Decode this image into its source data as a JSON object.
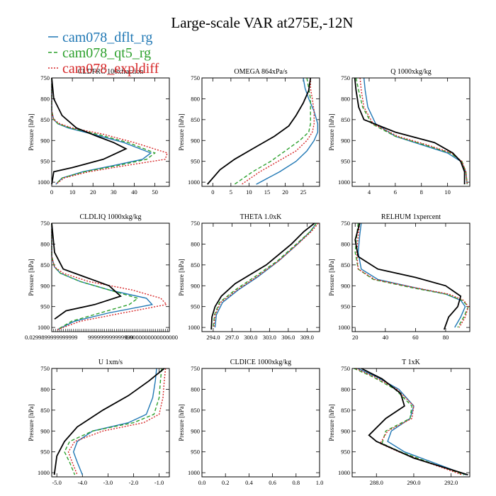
{
  "title": "Large-scale VAR at275E,-12N",
  "colors": {
    "dflt": "#1f77b4",
    "qt5": "#2ca02c",
    "expl": "#d62728",
    "obs": "#000000"
  },
  "legend": [
    {
      "name": "cam078_dflt_rg",
      "color": "#1f77b4",
      "dash": ""
    },
    {
      "name": "cam078_qt5_rg",
      "color": "#2ca02c",
      "dash": "5,3"
    },
    {
      "name": "cam078_expldiff",
      "color": "#d62728",
      "dash": "2,2"
    }
  ],
  "ylabel": "Pressure [hPa]",
  "chart_data": [
    {
      "type": "line",
      "title": "CLDFRC 100xfraction",
      "xlim": [
        0,
        57
      ],
      "ylim": [
        1010,
        750
      ],
      "xticks": [
        0,
        10,
        20,
        30,
        40,
        50
      ],
      "xticklabels": [
        "0",
        "10",
        "20",
        "30",
        "40",
        "50"
      ],
      "yticks": [
        750,
        800,
        850,
        900,
        950,
        1000
      ],
      "series": [
        {
          "key": "dflt",
          "x": [
            0,
            0,
            0,
            0,
            1,
            3,
            8,
            20,
            35,
            48,
            44,
            30,
            15,
            5,
            2
          ],
          "y": [
            750,
            780,
            800,
            830,
            850,
            860,
            870,
            885,
            905,
            930,
            945,
            960,
            975,
            990,
            1005
          ]
        },
        {
          "key": "qt5",
          "x": [
            0,
            0,
            0,
            0,
            1,
            3,
            9,
            22,
            37,
            50,
            46,
            32,
            16,
            5,
            2
          ],
          "y": [
            750,
            780,
            800,
            830,
            850,
            860,
            870,
            885,
            905,
            930,
            945,
            960,
            975,
            990,
            1005
          ]
        },
        {
          "key": "expl",
          "x": [
            0,
            0,
            0,
            0,
            1,
            4,
            10,
            25,
            40,
            56,
            55,
            36,
            18,
            6,
            2
          ],
          "y": [
            750,
            780,
            800,
            830,
            850,
            860,
            870,
            885,
            905,
            930,
            945,
            960,
            975,
            990,
            1005
          ]
        },
        {
          "key": "obs",
          "x": [
            0,
            1,
            5,
            12,
            22,
            30,
            36,
            25,
            10,
            1,
            0
          ],
          "y": [
            750,
            800,
            840,
            870,
            890,
            905,
            920,
            945,
            965,
            975,
            1005
          ]
        }
      ]
    },
    {
      "type": "line",
      "title": "OMEGA 864xPa/s",
      "xlim": [
        -3,
        29.5
      ],
      "ylim": [
        1010,
        750
      ],
      "xticks": [
        0,
        5,
        10,
        15,
        20,
        25
      ],
      "xticklabels": [
        "0",
        "5",
        "10",
        "15",
        "20",
        "25"
      ],
      "yticks": [
        750,
        800,
        850,
        900,
        950,
        1000
      ],
      "series": [
        {
          "key": "dflt",
          "x": [
            25,
            25.5,
            26.5,
            28,
            29,
            29,
            28,
            26,
            23,
            18.5,
            12
          ],
          "y": [
            750,
            775,
            800,
            830,
            860,
            880,
            900,
            925,
            950,
            975,
            1005
          ]
        },
        {
          "key": "qt5",
          "x": [
            26,
            26.5,
            27,
            27,
            27,
            26.5,
            24,
            20,
            16,
            11,
            6
          ],
          "y": [
            750,
            775,
            800,
            830,
            860,
            880,
            900,
            925,
            950,
            975,
            1005
          ]
        },
        {
          "key": "expl",
          "x": [
            27,
            27,
            27.5,
            28,
            28,
            27.5,
            26,
            23,
            18,
            13,
            8
          ],
          "y": [
            750,
            775,
            800,
            830,
            860,
            880,
            900,
            925,
            950,
            975,
            1005
          ]
        },
        {
          "key": "obs",
          "x": [
            27,
            26.5,
            25,
            23,
            21,
            17,
            11,
            6,
            2,
            -1.5
          ],
          "y": [
            750,
            780,
            810,
            840,
            865,
            890,
            920,
            945,
            970,
            1005
          ]
        }
      ]
    },
    {
      "type": "line",
      "title": "Q 1000xkg/kg",
      "xlim": [
        2.7,
        11.7
      ],
      "ylim": [
        1010,
        750
      ],
      "xticks": [
        4,
        6,
        8,
        10
      ],
      "xticklabels": [
        "4",
        "6",
        "8",
        "10"
      ],
      "yticks": [
        750,
        800,
        850,
        900,
        950,
        1000
      ],
      "series": [
        {
          "key": "dflt",
          "x": [
            3.6,
            3.7,
            3.9,
            4.5,
            6.0,
            8.0,
            10.0,
            11.0,
            11.4,
            11.5
          ],
          "y": [
            750,
            780,
            820,
            860,
            890,
            910,
            930,
            950,
            975,
            1005
          ]
        },
        {
          "key": "qt5",
          "x": [
            3.0,
            3.2,
            3.5,
            4.2,
            6.0,
            8.2,
            10.2,
            11.1,
            11.4,
            11.5
          ],
          "y": [
            750,
            780,
            820,
            860,
            890,
            910,
            930,
            950,
            975,
            1005
          ]
        },
        {
          "key": "expl",
          "x": [
            3.3,
            3.4,
            3.6,
            4.3,
            6.2,
            8.4,
            10.3,
            11.1,
            11.4,
            11.5
          ],
          "y": [
            750,
            780,
            820,
            860,
            890,
            910,
            930,
            950,
            975,
            1005
          ]
        },
        {
          "key": "obs",
          "x": [
            2.9,
            3.0,
            3.2,
            3.6,
            6.0,
            9.0,
            10.4,
            11.0,
            11.3,
            11.3
          ],
          "y": [
            750,
            780,
            820,
            850,
            880,
            905,
            930,
            950,
            975,
            1005
          ]
        }
      ]
    },
    {
      "type": "line",
      "title": "CLDLIQ 1000xkg/kg",
      "xlim": [
        0,
        0.041
      ],
      "ylim": [
        1010,
        750
      ],
      "xticklabels": [
        "0.0299899999999999",
        "999999999999999",
        "0.0000000000000000"
      ],
      "yticks": [
        750,
        800,
        850,
        900,
        950,
        1000
      ],
      "series": [
        {
          "key": "dflt",
          "x": [
            0,
            0,
            0,
            0.001,
            0.003,
            0.01,
            0.02,
            0.033,
            0.035,
            0.02,
            0.008,
            0.002
          ],
          "y": [
            750,
            800,
            830,
            855,
            870,
            890,
            910,
            930,
            945,
            965,
            985,
            1005
          ]
        },
        {
          "key": "qt5",
          "x": [
            0,
            0,
            0,
            0.001,
            0.003,
            0.01,
            0.02,
            0.03,
            0.027,
            0.017,
            0.007,
            0.002
          ],
          "y": [
            750,
            800,
            830,
            855,
            870,
            890,
            910,
            930,
            945,
            965,
            985,
            1005
          ]
        },
        {
          "key": "expl",
          "x": [
            0,
            0,
            0,
            0.001,
            0.004,
            0.013,
            0.028,
            0.038,
            0.04,
            0.025,
            0.01,
            0.002
          ],
          "y": [
            750,
            800,
            830,
            855,
            870,
            890,
            910,
            930,
            945,
            965,
            985,
            1005
          ]
        },
        {
          "key": "obs",
          "x": [
            0,
            0.001,
            0.004,
            0.012,
            0.02,
            0.024,
            0.015,
            0.005,
            0.001
          ],
          "y": [
            750,
            820,
            860,
            880,
            900,
            925,
            945,
            960,
            980
          ]
        }
      ]
    },
    {
      "type": "line",
      "title": "THETA 1.0xK",
      "xlim": [
        292.2,
        311
      ],
      "ylim": [
        1010,
        750
      ],
      "xticks": [
        294.0,
        297.0,
        300.0,
        303.0,
        306.0,
        309.0
      ],
      "xticklabels": [
        "294.0",
        "297.0",
        "300.0",
        "303.0",
        "306.0",
        "309.0"
      ],
      "yticks": [
        750,
        800,
        850,
        900,
        950,
        1000
      ],
      "series": [
        {
          "key": "dflt",
          "x": [
            310.5,
            309.5,
            307.5,
            304.5,
            301.0,
            298.0,
            295.5,
            294.5,
            294.3
          ],
          "y": [
            750,
            770,
            800,
            840,
            880,
            910,
            940,
            970,
            1000
          ]
        },
        {
          "key": "qt5",
          "x": [
            310.5,
            309.5,
            307.3,
            304.3,
            300.5,
            297.5,
            295.0,
            294.2,
            294.0
          ],
          "y": [
            750,
            770,
            800,
            840,
            880,
            910,
            940,
            970,
            1000
          ]
        },
        {
          "key": "expl",
          "x": [
            310.8,
            309.7,
            307.5,
            304.5,
            300.8,
            297.8,
            295.2,
            294.3,
            294.1
          ],
          "y": [
            750,
            770,
            800,
            840,
            880,
            910,
            940,
            970,
            1000
          ]
        },
        {
          "key": "obs",
          "x": [
            310.2,
            308.5,
            306.5,
            302.5,
            297.5,
            295.3,
            294.3,
            293.8,
            293.7
          ],
          "y": [
            750,
            770,
            800,
            850,
            895,
            925,
            950,
            975,
            1005
          ]
        }
      ]
    },
    {
      "type": "line",
      "title": "RELHUM 1xpercent",
      "xlim": [
        18,
        96
      ],
      "ylim": [
        1010,
        750
      ],
      "xticks": [
        20,
        40,
        60,
        80
      ],
      "xticklabels": [
        "20",
        "40",
        "60",
        "80"
      ],
      "yticks": [
        750,
        800,
        850,
        900,
        950,
        1000
      ],
      "series": [
        {
          "key": "dflt",
          "x": [
            24,
            23,
            22,
            24,
            35,
            60,
            80,
            90,
            93,
            90,
            86
          ],
          "y": [
            750,
            780,
            820,
            860,
            885,
            905,
            920,
            935,
            950,
            975,
            1000
          ]
        },
        {
          "key": "qt5",
          "x": [
            22,
            21,
            20,
            22,
            32,
            58,
            80,
            91,
            95,
            92,
            88
          ],
          "y": [
            750,
            780,
            820,
            860,
            885,
            905,
            920,
            935,
            950,
            975,
            1000
          ]
        },
        {
          "key": "expl",
          "x": [
            23,
            22,
            21,
            22,
            33,
            60,
            82,
            92,
            95,
            93,
            89
          ],
          "y": [
            750,
            780,
            820,
            860,
            885,
            905,
            920,
            935,
            950,
            975,
            1000
          ]
        },
        {
          "key": "obs",
          "x": [
            23,
            20,
            22,
            35,
            60,
            80,
            90,
            88,
            82,
            79
          ],
          "y": [
            750,
            790,
            830,
            860,
            880,
            900,
            925,
            950,
            975,
            1005
          ]
        }
      ]
    },
    {
      "type": "line",
      "title": "U 1xm/s",
      "xlim": [
        -5.2,
        -0.6
      ],
      "ylim": [
        1010,
        750
      ],
      "xticks": [
        -5.0,
        -4.0,
        -3.0,
        -2.0,
        -1.0
      ],
      "xticklabels": [
        "-5.0",
        "-4.0",
        "-3.0",
        "-2.0",
        "-1.0"
      ],
      "yticks": [
        750,
        800,
        850,
        900,
        950,
        1000
      ],
      "series": [
        {
          "key": "dflt",
          "x": [
            -1.1,
            -1.15,
            -1.25,
            -1.5,
            -2.2,
            -3.6,
            -4.2,
            -4.35,
            -4.2,
            -4.0
          ],
          "y": [
            750,
            780,
            820,
            860,
            880,
            900,
            925,
            950,
            975,
            1005
          ]
        },
        {
          "key": "qt5",
          "x": [
            -0.9,
            -0.95,
            -1.0,
            -1.2,
            -2.0,
            -3.6,
            -4.5,
            -4.7,
            -4.5,
            -4.3
          ],
          "y": [
            750,
            780,
            820,
            860,
            880,
            900,
            925,
            950,
            975,
            1005
          ]
        },
        {
          "key": "expl",
          "x": [
            -0.75,
            -0.8,
            -0.85,
            -1.0,
            -1.6,
            -3.2,
            -4.3,
            -4.55,
            -4.4,
            -4.2
          ],
          "y": [
            750,
            780,
            820,
            860,
            880,
            900,
            925,
            950,
            975,
            1005
          ]
        },
        {
          "key": "obs",
          "x": [
            -0.8,
            -1.4,
            -2.2,
            -3.2,
            -4.2,
            -4.7,
            -5.0,
            -5.1
          ],
          "y": [
            750,
            780,
            815,
            850,
            890,
            925,
            960,
            1005
          ]
        }
      ]
    },
    {
      "type": "line",
      "title": "CLDICE 1000xkg/kg",
      "xlim": [
        0,
        1
      ],
      "ylim": [
        1010,
        750
      ],
      "xticks": [
        0,
        0.2,
        0.4,
        0.6,
        0.8,
        1.0
      ],
      "xticklabels": [
        "0.0",
        "0.2",
        "0.4",
        "0.6",
        "0.8",
        "1.0"
      ],
      "yticks": [
        750,
        800,
        850,
        900,
        950,
        1000
      ],
      "series": []
    },
    {
      "type": "line",
      "title": "T 1xK",
      "xlim": [
        286.7,
        293
      ],
      "ylim": [
        1010,
        750
      ],
      "xticks": [
        288.0,
        290.0,
        292.0
      ],
      "xticklabels": [
        "288.0",
        "290.0",
        "292.0"
      ],
      "yticks": [
        750,
        800,
        850,
        900,
        950,
        1000
      ],
      "series": [
        {
          "key": "dflt",
          "x": [
            287.0,
            288.0,
            289.2,
            290.0,
            289.8,
            288.8,
            288.6,
            289.5,
            291.0,
            292.8
          ],
          "y": [
            750,
            770,
            800,
            840,
            870,
            900,
            925,
            950,
            975,
            1005
          ]
        },
        {
          "key": "qt5",
          "x": [
            286.8,
            287.8,
            289.0,
            289.9,
            289.8,
            288.5,
            288.3,
            289.3,
            290.8,
            292.7
          ],
          "y": [
            750,
            770,
            800,
            840,
            870,
            900,
            930,
            950,
            975,
            1005
          ]
        },
        {
          "key": "expl",
          "x": [
            286.9,
            287.9,
            289.1,
            290.0,
            289.9,
            288.6,
            288.2,
            289.2,
            290.7,
            292.6
          ],
          "y": [
            750,
            770,
            800,
            840,
            870,
            900,
            930,
            950,
            975,
            1005
          ]
        },
        {
          "key": "obs",
          "x": [
            287.2,
            288.3,
            289.3,
            289.5,
            288.5,
            287.6,
            288.0,
            290.0,
            292.9
          ],
          "y": [
            750,
            775,
            810,
            840,
            870,
            910,
            925,
            965,
            1005
          ]
        }
      ]
    }
  ]
}
